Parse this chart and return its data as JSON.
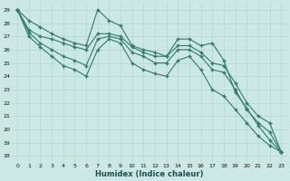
{
  "xlabel": "Humidex (Indice chaleur)",
  "bg_color": "#cce8e4",
  "grid_color": "#b8d8d4",
  "line_color": "#2e7b6e",
  "xlim": [
    -0.5,
    23.5
  ],
  "ylim": [
    17.5,
    29.5
  ],
  "xticks": [
    0,
    1,
    2,
    3,
    4,
    5,
    6,
    7,
    8,
    9,
    10,
    11,
    12,
    13,
    14,
    15,
    16,
    17,
    18,
    19,
    20,
    21,
    22,
    23
  ],
  "yticks": [
    18,
    19,
    20,
    21,
    22,
    23,
    24,
    25,
    26,
    27,
    28,
    29
  ],
  "series": [
    [
      29.0,
      28.2,
      27.7,
      27.2,
      26.8,
      26.5,
      26.3,
      29.0,
      28.2,
      27.8,
      26.3,
      26.0,
      25.8,
      25.5,
      26.8,
      26.8,
      26.3,
      26.5,
      25.2,
      22.8,
      21.6,
      20.3,
      19.2,
      18.3
    ],
    [
      29.0,
      27.5,
      27.0,
      26.8,
      26.5,
      26.2,
      26.0,
      27.2,
      27.2,
      27.0,
      26.2,
      25.8,
      25.5,
      25.5,
      26.3,
      26.3,
      25.8,
      25.0,
      24.8,
      23.5,
      22.0,
      21.0,
      20.5,
      18.3
    ],
    [
      29.0,
      27.3,
      26.5,
      26.0,
      25.5,
      25.2,
      24.8,
      26.8,
      27.0,
      26.8,
      25.8,
      25.5,
      25.0,
      25.0,
      26.0,
      26.0,
      25.5,
      24.5,
      24.3,
      23.0,
      21.5,
      20.5,
      19.8,
      18.3
    ],
    [
      29.0,
      27.0,
      26.2,
      25.5,
      24.8,
      24.5,
      24.0,
      26.0,
      26.8,
      26.5,
      25.0,
      24.5,
      24.2,
      24.0,
      25.2,
      25.5,
      24.5,
      23.0,
      22.5,
      21.5,
      20.5,
      19.5,
      18.8,
      18.3
    ]
  ]
}
